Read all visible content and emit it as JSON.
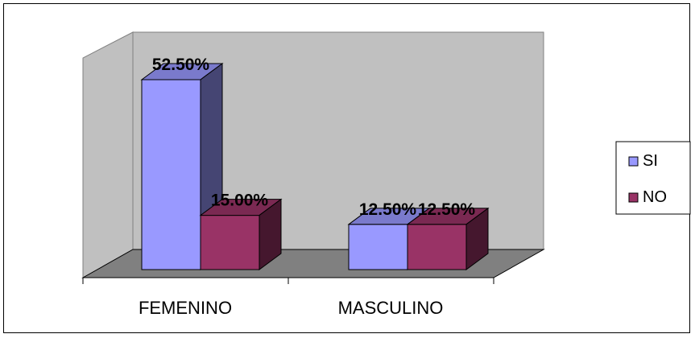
{
  "chart_data": {
    "type": "bar",
    "title": "",
    "xlabel": "",
    "ylabel": "",
    "categories": [
      "FEMENINO",
      "MASCULINO"
    ],
    "series": [
      {
        "name": "SI",
        "values": [
          52.5,
          12.5
        ],
        "labels": [
          "52.50%",
          "12.50%"
        ],
        "color": "#9999ff"
      },
      {
        "name": "NO",
        "values": [
          15.0,
          12.5
        ],
        "labels": [
          "15.00%",
          "12.50%"
        ],
        "color": "#993366"
      }
    ],
    "ylim": [
      0,
      60
    ],
    "grid": false,
    "legend_position": "right",
    "style": "3d",
    "wall_color": "#c0c0c0",
    "floor_color": "#808080"
  }
}
